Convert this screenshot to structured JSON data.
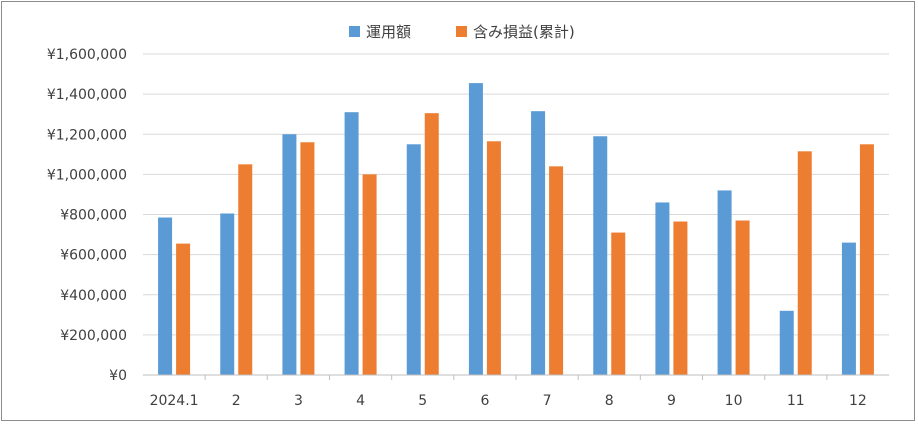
{
  "chart_data": {
    "type": "bar",
    "title": "",
    "xlabel": "",
    "ylabel": "",
    "categories": [
      "2024.1",
      "2",
      "3",
      "4",
      "5",
      "6",
      "7",
      "8",
      "9",
      "10",
      "11",
      "12"
    ],
    "series": [
      {
        "name": "運用額",
        "color": "#5b9bd5",
        "values": [
          785000,
          805000,
          1200000,
          1310000,
          1150000,
          1455000,
          1315000,
          1190000,
          860000,
          920000,
          320000,
          660000
        ]
      },
      {
        "name": "含み損益(累計)",
        "color": "#ed7d31",
        "values": [
          655000,
          1050000,
          1160000,
          1000000,
          1305000,
          1165000,
          1040000,
          710000,
          765000,
          770000,
          1115000,
          1150000
        ]
      }
    ],
    "y_ticks": [
      "¥0",
      "¥200,000",
      "¥400,000",
      "¥600,000",
      "¥800,000",
      "¥1,000,000",
      "¥1,200,000",
      "¥1,400,000",
      "¥1,600,000"
    ],
    "ylim": [
      0,
      1600000
    ],
    "grid": true,
    "legend_position": "top-center"
  }
}
